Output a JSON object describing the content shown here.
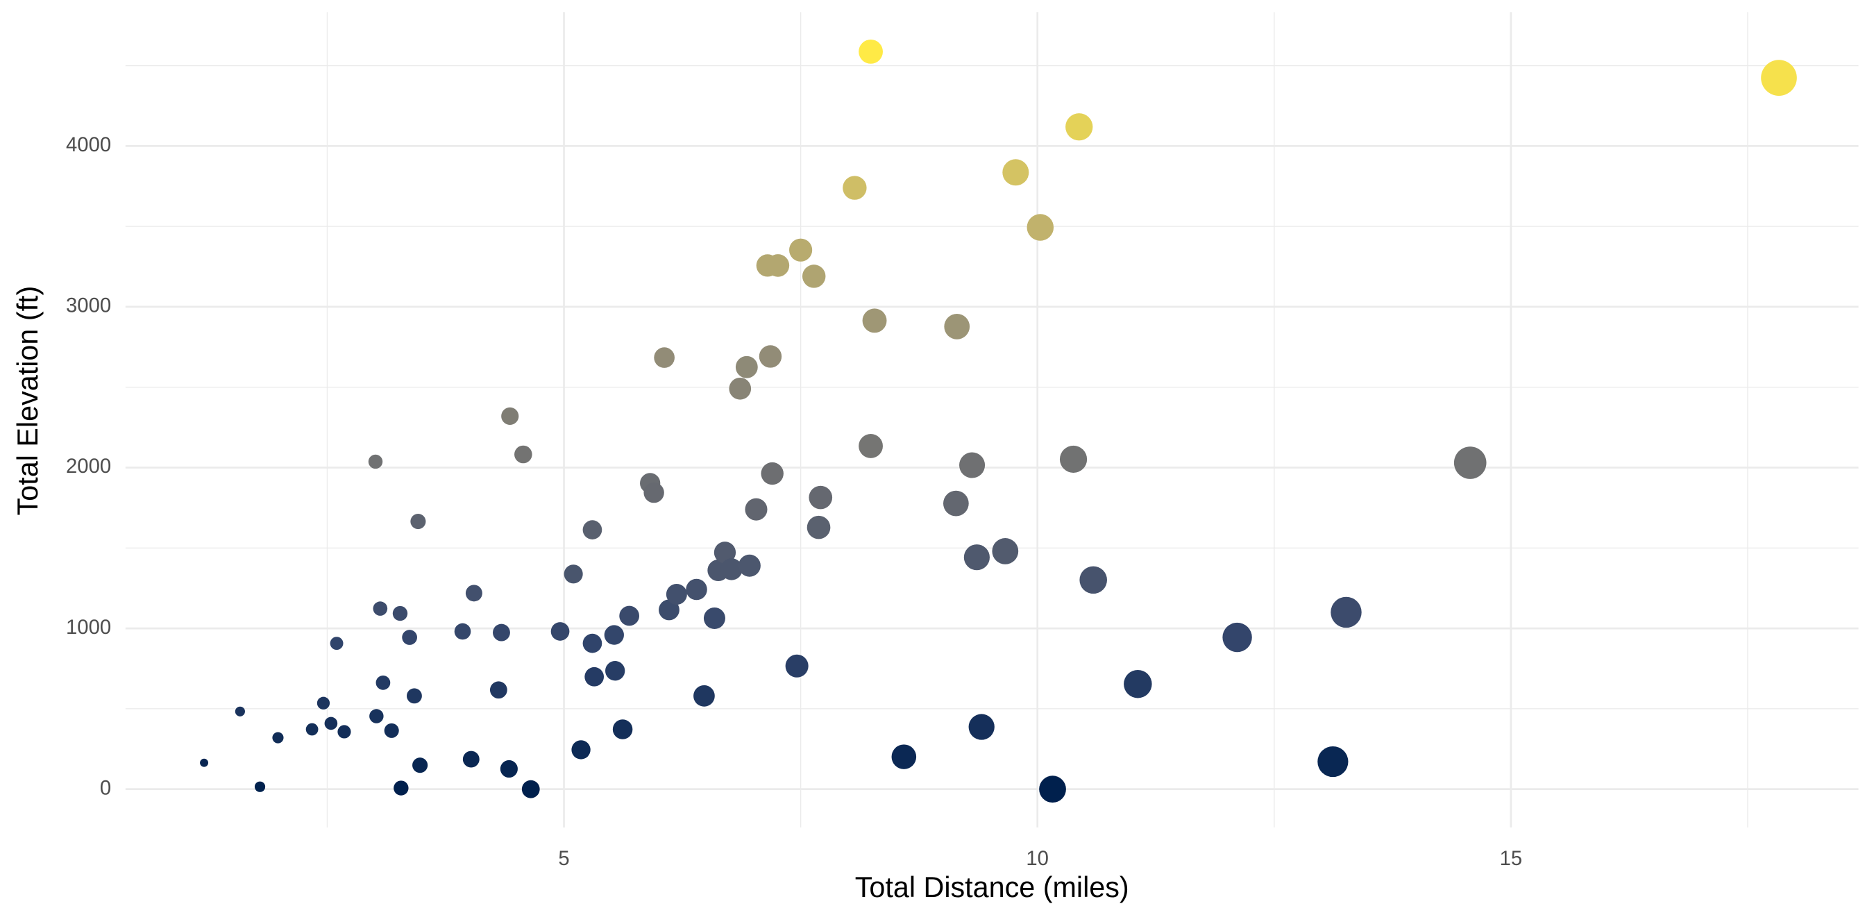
{
  "chart_data": {
    "type": "scatter",
    "x_label": "Total Distance (miles)",
    "y_label": "Total Elevation (ft)",
    "xlim": [
      0.37,
      18.67
    ],
    "ylim": [
      -238,
      4833
    ],
    "xticks": [
      5,
      10,
      15
    ],
    "yticks": [
      0,
      1000,
      2000,
      3000,
      4000
    ],
    "x_minor_grid": [
      2.5,
      7.5,
      12.5,
      17.5
    ],
    "y_minor_grid": [
      500,
      1500,
      2500,
      3500,
      4500
    ],
    "grid": true,
    "color_by": "y",
    "size_by": "x",
    "color_scale": [
      "#00204D",
      "#31446B",
      "#666970",
      "#958F78",
      "#CBBA69",
      "#FFEA46"
    ],
    "x": [
      1.2,
      1.58,
      1.79,
      1.98,
      2.34,
      2.46,
      2.54,
      2.68,
      2.6,
      3.01,
      3.06,
      3.09,
      3.02,
      3.18,
      3.27,
      3.37,
      3.42,
      3.28,
      3.48,
      3.46,
      3.93,
      4.02,
      4.05,
      4.31,
      4.34,
      4.42,
      4.43,
      4.57,
      4.65,
      4.96,
      5.1,
      5.18,
      5.3,
      5.3,
      5.32,
      5.53,
      5.54,
      5.62,
      5.69,
      5.91,
      5.95,
      6.06,
      6.11,
      6.19,
      6.4,
      6.48,
      6.59,
      6.63,
      6.7,
      6.77,
      6.86,
      6.93,
      6.96,
      7.03,
      7.15,
      7.18,
      7.2,
      7.26,
      7.46,
      7.5,
      7.64,
      7.69,
      7.71,
      8.07,
      8.24,
      8.24,
      8.28,
      8.59,
      9.14,
      9.15,
      9.31,
      9.36,
      9.41,
      9.66,
      9.77,
      10.03,
      10.16,
      10.38,
      10.44,
      10.59,
      11.06,
      12.11,
      13.12,
      13.26,
      14.57,
      17.83
    ],
    "y": [
      164,
      483,
      15,
      320,
      372,
      535,
      409,
      357,
      907,
      2037,
      1123,
      662,
      454,
      364,
      1093,
      944,
      580,
      7,
      149,
      1665,
      981,
      186,
      1219,
      617,
      974,
      126,
      2320,
      2082,
      0,
      981,
      1338,
      245,
      1613,
      907,
      699,
      959,
      736,
      372,
      1078,
      1903,
      1844,
      2684,
      1115,
      1212,
      1242,
      580,
      1063,
      1361,
      1472,
      1368,
      2491,
      2625,
      1390,
      1740,
      3257,
      2691,
      1963,
      3257,
      766,
      3353,
      3190,
      1628,
      1814,
      3740,
      4587,
      2134,
      2914,
      201,
      1777,
      2877,
      2015,
      1442,
      387,
      1480,
      3836,
      3494,
      0,
      2052,
      4119,
      1301,
      654,
      944,
      171,
      1100,
      2030,
      4424
    ]
  }
}
